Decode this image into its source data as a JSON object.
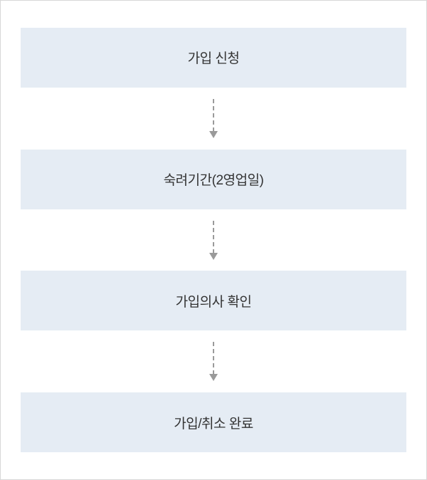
{
  "flow": {
    "type": "flowchart",
    "direction": "vertical",
    "background_color": "#ffffff",
    "container_border_color": "#d8d8d8",
    "step_background": "#e5ecf4",
    "step_text_color": "#333333",
    "step_fontsize": 19,
    "step_width": 544,
    "step_height": 84,
    "arrow_color": "#9a9a9a",
    "arrow_style": "dashed",
    "arrow_length": 46,
    "steps": [
      {
        "label": "가입 신청"
      },
      {
        "label": "숙려기간(2영업일)"
      },
      {
        "label": "가입의사 확인"
      },
      {
        "label": "가입/취소 완료"
      }
    ]
  }
}
